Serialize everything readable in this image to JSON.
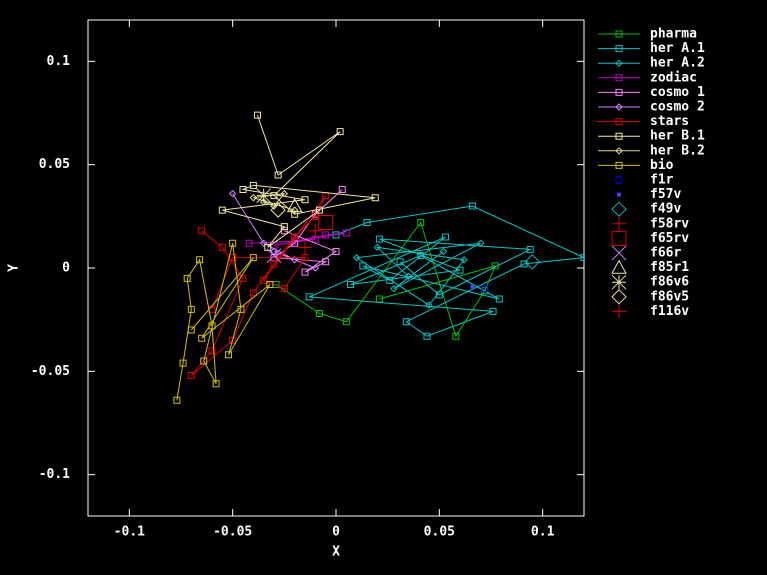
{
  "chart_data": {
    "type": "scatter",
    "xlabel": "X",
    "ylabel": "Y",
    "xlim": [
      -0.12,
      0.12
    ],
    "ylim": [
      -0.12,
      0.12
    ],
    "xticks": [
      -0.1,
      -0.05,
      0,
      0.05,
      0.1
    ],
    "yticks": [
      -0.1,
      -0.05,
      0,
      0.05,
      0.1
    ],
    "legend": "outside-right",
    "series": [
      {
        "name": "pharma",
        "color": "#00c000",
        "marker": "square",
        "line": true,
        "x": [
          -0.029,
          -0.008,
          0.005,
          0.041,
          0.058,
          0.072,
          0.077,
          0.021
        ],
        "y": [
          -0.008,
          -0.022,
          -0.026,
          0.022,
          -0.033,
          -0.011,
          0.001,
          -0.015
        ]
      },
      {
        "name": "her A.1",
        "color": "#00c8c8",
        "marker": "square",
        "line": true,
        "x": [
          0,
          0.015,
          0.066,
          0.12,
          0.091,
          0.034,
          0.044,
          0.076,
          -0.013,
          0.053,
          0.026,
          0.013,
          0.079,
          0.041,
          0.007,
          0.06,
          0.021,
          0.094,
          0.05,
          0.031
        ],
        "y": [
          0.016,
          0.022,
          0.03,
          0.005,
          0.002,
          -0.026,
          -0.033,
          -0.021,
          -0.014,
          0.015,
          -0.006,
          0.001,
          -0.015,
          0.006,
          -0.008,
          -0.001,
          0.014,
          0.009,
          -0.013,
          0.003
        ]
      },
      {
        "name": "her A.2",
        "color": "#00c8c8",
        "marker": "diamond",
        "line": true,
        "x": [
          0.035,
          0.02,
          0.062,
          0.045,
          0.01,
          0.07,
          0.028,
          0.052
        ],
        "y": [
          -0.004,
          0.01,
          0.004,
          -0.018,
          0.005,
          0.012,
          -0.01,
          0.008
        ]
      },
      {
        "name": "zodiac",
        "color": "#c000c0",
        "marker": "square",
        "line": true,
        "x": [
          -0.042,
          -0.02,
          -0.005,
          0.005,
          -0.03,
          -0.01
        ],
        "y": [
          0.012,
          0.013,
          0.016,
          0.017,
          0.011,
          0.014
        ]
      },
      {
        "name": "cosmo 1",
        "color": "#ff80ff",
        "marker": "square",
        "line": true,
        "x": [
          0.003,
          -0.01,
          -0.02,
          -0.03,
          -0.005,
          -0.015,
          0.0,
          -0.025
        ],
        "y": [
          0.038,
          0.026,
          0.012,
          0.005,
          0.003,
          -0.002,
          0.008,
          0.018
        ]
      },
      {
        "name": "cosmo 2",
        "color": "#d080ff",
        "marker": "diamond",
        "line": true,
        "x": [
          -0.05,
          -0.035,
          -0.02,
          -0.01,
          -0.03
        ],
        "y": [
          0.036,
          0.012,
          0.004,
          0.0,
          0.008
        ]
      },
      {
        "name": "stars",
        "color": "#e00000",
        "marker": "square",
        "line": true,
        "x": [
          -0.065,
          -0.055,
          -0.045,
          -0.06,
          -0.07,
          -0.05,
          -0.04,
          -0.03,
          -0.02,
          -0.01,
          -0.005,
          -0.035,
          -0.025,
          -0.015,
          -0.05,
          -0.06
        ],
        "y": [
          0.018,
          0.01,
          -0.005,
          -0.04,
          -0.052,
          -0.035,
          -0.012,
          0.002,
          0.015,
          0.025,
          0.035,
          -0.006,
          -0.01,
          0.005,
          0.005,
          -0.02
        ]
      },
      {
        "name": "her B.1",
        "color": "#f0e8a0",
        "marker": "square",
        "line": true,
        "x": [
          -0.038,
          -0.028,
          0.002,
          -0.03,
          -0.02,
          0.019,
          -0.04,
          -0.045,
          -0.015,
          -0.055,
          -0.025,
          -0.033,
          -0.008
        ],
        "y": [
          0.074,
          0.045,
          0.066,
          0.035,
          0.026,
          0.034,
          0.04,
          0.038,
          0.033,
          0.028,
          0.02,
          0.01,
          0.028
        ]
      },
      {
        "name": "her B.2",
        "color": "#e0dc98",
        "marker": "diamond",
        "line": true,
        "x": [
          -0.035,
          -0.03,
          -0.025,
          -0.04,
          -0.02
        ],
        "y": [
          0.032,
          0.03,
          0.036,
          0.034,
          0.028
        ]
      },
      {
        "name": "bio",
        "color": "#d0c000",
        "marker": "square",
        "line": true,
        "x": [
          -0.077,
          -0.074,
          -0.07,
          -0.072,
          -0.066,
          -0.06,
          -0.058,
          -0.064,
          -0.05,
          -0.046,
          -0.052,
          -0.032,
          -0.065,
          -0.04,
          -0.07
        ],
        "y": [
          -0.064,
          -0.046,
          -0.02,
          -0.005,
          0.004,
          -0.028,
          -0.056,
          -0.045,
          0.012,
          -0.02,
          -0.042,
          -0.008,
          -0.034,
          0.005,
          -0.03
        ]
      },
      {
        "name": "f1r",
        "color": "#0000ff",
        "marker": "square",
        "line": false,
        "x": [
          0.072
        ],
        "y": [
          -0.01
        ]
      },
      {
        "name": "f57v",
        "color": "#4040ff",
        "marker": "point",
        "line": false,
        "x": [
          0.066
        ],
        "y": [
          -0.009
        ]
      },
      {
        "name": "f49v",
        "color": "#00c0c0",
        "marker": "big-diamond",
        "line": false,
        "x": [
          0.095
        ],
        "y": [
          0.003
        ]
      },
      {
        "name": "f58rv",
        "color": "#e00000",
        "marker": "big-plus",
        "line": false,
        "x": [
          -0.01
        ],
        "y": [
          0.018
        ]
      },
      {
        "name": "f65rv",
        "color": "#e00000",
        "marker": "big-square",
        "line": false,
        "x": [
          -0.005
        ],
        "y": [
          0.022
        ]
      },
      {
        "name": "f66r",
        "color": "#c080ff",
        "marker": "big-cross",
        "line": false,
        "x": [
          -0.03
        ],
        "y": [
          0.006
        ]
      },
      {
        "name": "f85r1",
        "color": "#f0e8a0",
        "marker": "big-triangle",
        "line": false,
        "x": [
          -0.02
        ],
        "y": [
          0.03
        ]
      },
      {
        "name": "f86v6",
        "color": "#f0e8a0",
        "marker": "big-star",
        "line": false,
        "x": [
          -0.035
        ],
        "y": [
          0.035
        ]
      },
      {
        "name": "f86v5",
        "color": "#f0e8a0",
        "marker": "big-diamond",
        "line": false,
        "x": [
          -0.028
        ],
        "y": [
          0.028
        ]
      },
      {
        "name": "f116v",
        "color": "#e00000",
        "marker": "big-plus",
        "line": false,
        "x": [
          -0.015
        ],
        "y": [
          0.01
        ]
      }
    ]
  }
}
